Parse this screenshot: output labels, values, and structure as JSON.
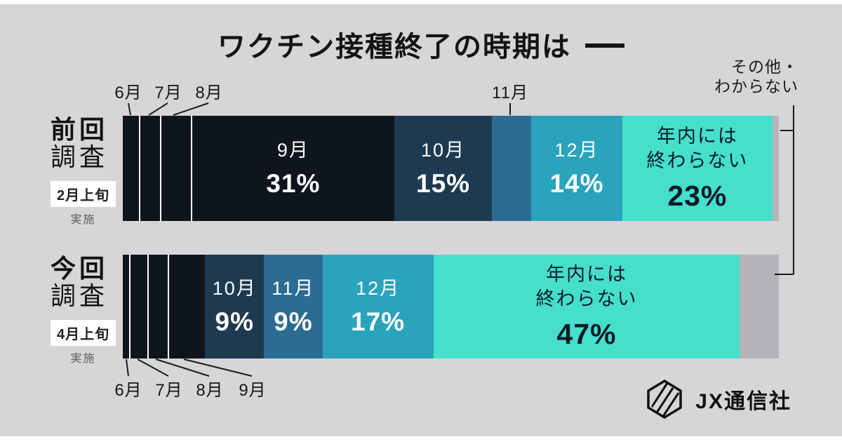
{
  "other_label": {
    "line1": "その他・",
    "line2": "わからない"
  },
  "callouts": {
    "prev_top": [
      "6月",
      "7月",
      "8月",
      "11月"
    ],
    "now_bottom": [
      "6月",
      "7月",
      "8月",
      "9月"
    ]
  },
  "logo": {
    "text": "JX通信社"
  },
  "colors": {
    "background": "#d8d5d8",
    "ink": "#161616",
    "dark_navy": "#0f151c",
    "slate_blue": "#1e3a50",
    "steel_blue": "#2b6d92",
    "teal": "#2aa3bc",
    "mint": "#45dfcc",
    "other_gray": "#b6b4b8"
  },
  "chart_data": {
    "type": "bar",
    "variant": "horizontal-stacked-100pct",
    "title": "ワクチン接種終了の時期は",
    "unit": "%",
    "legend_position": "none",
    "bars": [
      {
        "group_line1": "前回",
        "group_line2": "調査",
        "period": "2月上旬",
        "period_note": "実施",
        "segments": [
          {
            "label": "6月",
            "value": 2.5,
            "color": "#0f151c",
            "inside_label": false,
            "sep": true
          },
          {
            "label": "7月",
            "value": 3,
            "color": "#0f151c",
            "inside_label": false,
            "sep": true
          },
          {
            "label": "8月",
            "value": 4.5,
            "color": "#0f151c",
            "inside_label": false,
            "sep": true
          },
          {
            "label": "9月",
            "value": 31,
            "value_label": "31%",
            "color": "#0f151c",
            "inside_label": true,
            "text": "light"
          },
          {
            "label": "10月",
            "value": 15,
            "value_label": "15%",
            "color": "#1e3a50",
            "inside_label": true,
            "text": "light"
          },
          {
            "label": "11月",
            "value": 6,
            "color": "#2b6d92",
            "inside_label": false
          },
          {
            "label": "12月",
            "value": 14,
            "value_label": "14%",
            "color": "#2aa3bc",
            "inside_label": true,
            "text": "light"
          },
          {
            "label": "年内には終わらない",
            "label_lines": [
              "年内には",
              "終わらない"
            ],
            "value": 23,
            "value_label": "23%",
            "color": "#45dfcc",
            "inside_label": true,
            "text": "dark"
          },
          {
            "label": "その他・わからない",
            "value": 1,
            "color": "#b6b4b8",
            "inside_label": false
          }
        ]
      },
      {
        "group_line1": "今回",
        "group_line2": "調査",
        "period": "4月上旬",
        "period_note": "実施",
        "segments": [
          {
            "label": "6月",
            "value": 1,
            "color": "#0f151c",
            "inside_label": false,
            "sep": true
          },
          {
            "label": "7月",
            "value": 2.5,
            "color": "#0f151c",
            "inside_label": false,
            "sep": true
          },
          {
            "label": "8月",
            "value": 3,
            "color": "#0f151c",
            "inside_label": false,
            "sep": true
          },
          {
            "label": "9月",
            "value": 5.5,
            "color": "#0f151c",
            "inside_label": false
          },
          {
            "label": "10月",
            "value": 9,
            "value_label": "9%",
            "color": "#1e3a50",
            "inside_label": true,
            "text": "light"
          },
          {
            "label": "11月",
            "value": 9,
            "value_label": "9%",
            "color": "#2b6d92",
            "inside_label": true,
            "text": "light"
          },
          {
            "label": "12月",
            "value": 17,
            "value_label": "17%",
            "color": "#2aa3bc",
            "inside_label": true,
            "text": "light"
          },
          {
            "label": "年内には終わらない",
            "label_lines": [
              "年内には",
              "終わらない"
            ],
            "value": 47,
            "value_label": "47%",
            "color": "#45dfcc",
            "inside_label": true,
            "text": "dark"
          },
          {
            "label": "その他・わからない",
            "value": 6,
            "color": "#b6b4b8",
            "inside_label": false
          }
        ]
      }
    ]
  }
}
